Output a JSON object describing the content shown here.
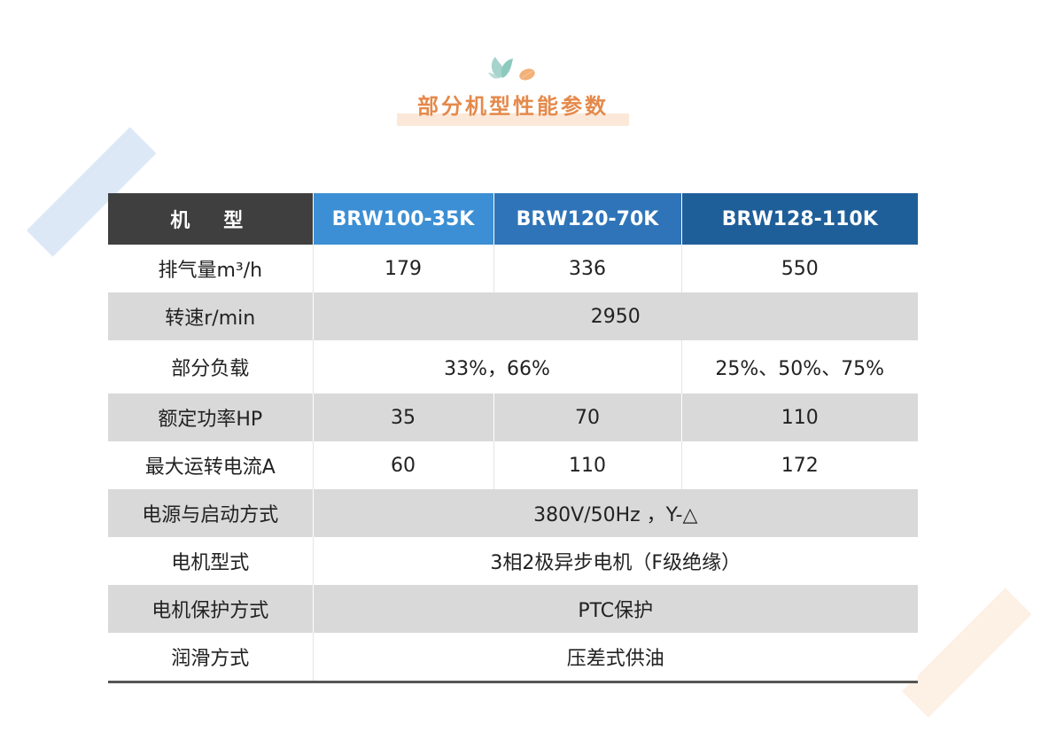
{
  "title": "部分机型性能参数",
  "logo_icon": "leaf-icon",
  "table": {
    "header": [
      "机　型",
      "BRW100-35K",
      "BRW120-70K",
      "BRW128-110K"
    ],
    "rows": [
      {
        "label": "排气量m³/h",
        "cells": [
          "179",
          "336",
          "550"
        ]
      },
      {
        "label": "转速r/min",
        "cells": [
          "2950"
        ]
      },
      {
        "label": "部分负载",
        "cells": [
          "33%，66%",
          "25%、50%、75%"
        ]
      },
      {
        "label": "额定功率HP",
        "cells": [
          "35",
          "70",
          "110"
        ]
      },
      {
        "label": "最大运转电流A",
        "cells": [
          "60",
          "110",
          "172"
        ]
      },
      {
        "label": "电源与启动方式",
        "cells": [
          "380V/50Hz ，Y-△"
        ]
      },
      {
        "label": "电机型式",
        "cells": [
          "3相2极异步电机（F级绝缘）"
        ]
      },
      {
        "label": "电机保护方式",
        "cells": [
          "PTC保护"
        ]
      },
      {
        "label": "润滑方式",
        "cells": [
          "压差式供油"
        ]
      }
    ]
  },
  "colors": {
    "header_label_bg": "#3f3f3f",
    "header_col1_bg": "#3c8fd4",
    "header_col2_bg": "#2f74b8",
    "header_col3_bg": "#1f5f99",
    "title_color": "#e5894a",
    "alt_row_bg": "#d9d9d9"
  }
}
